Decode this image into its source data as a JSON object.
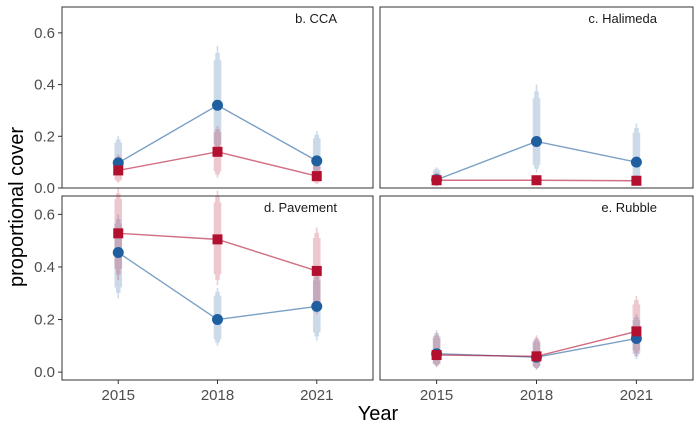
{
  "chart_data": {
    "type": "line",
    "xlabel": "Year",
    "ylabel": "proportional cover",
    "x": [
      2015,
      2018,
      2021
    ],
    "grid": false,
    "colors": {
      "blue": "#1f5fa0",
      "red": "#b30f2e"
    },
    "panels": [
      {
        "title": "b. CCA",
        "ylim": [
          0,
          0.7
        ],
        "yticks": [
          0.0,
          0.2,
          0.4,
          0.6
        ],
        "ytick_labels": [
          "0.0",
          "0.2",
          "0.4",
          "0.6"
        ],
        "series": [
          {
            "color": "#1f5fa0",
            "marker": "circle",
            "values": [
              0.097,
              0.32,
              0.105
            ],
            "ranges": [
              [
                0.05,
                0.2
              ],
              [
                0.12,
                0.55
              ],
              [
                0.03,
                0.22
              ]
            ]
          },
          {
            "color": "#b30f2e",
            "marker": "square",
            "values": [
              0.068,
              0.14,
              0.046
            ],
            "ranges": [
              [
                0.02,
                0.13
              ],
              [
                0.04,
                0.24
              ],
              [
                0.015,
                0.1
              ]
            ]
          }
        ]
      },
      {
        "title": "c. Halimeda",
        "ylim": [
          0,
          0.7
        ],
        "yticks": [
          0.0,
          0.2,
          0.4,
          0.6
        ],
        "ytick_labels": [
          "0.0",
          "0.2",
          "0.4",
          "0.6"
        ],
        "series": [
          {
            "color": "#1f5fa0",
            "marker": "circle",
            "values": [
              0.032,
              0.18,
              0.1
            ],
            "ranges": [
              [
                0.005,
                0.08
              ],
              [
                0.06,
                0.4
              ],
              [
                0.02,
                0.25
              ]
            ]
          },
          {
            "color": "#b30f2e",
            "marker": "square",
            "values": [
              0.03,
              0.03,
              0.028
            ],
            "ranges": [
              [
                0.01,
                0.06
              ],
              [
                0.01,
                0.05
              ],
              [
                0.01,
                0.05
              ]
            ]
          }
        ]
      },
      {
        "title": "d. Pavement",
        "ylim": [
          -0.03,
          0.67
        ],
        "yticks": [
          0.0,
          0.2,
          0.4,
          0.6
        ],
        "ytick_labels": [
          "0.0",
          "0.2",
          "0.4",
          "0.6"
        ],
        "series": [
          {
            "color": "#1f5fa0",
            "marker": "circle",
            "values": [
              0.455,
              0.2,
              0.25
            ],
            "ranges": [
              [
                0.28,
                0.6
              ],
              [
                0.1,
                0.32
              ],
              [
                0.12,
                0.38
              ]
            ]
          },
          {
            "color": "#b30f2e",
            "marker": "square",
            "values": [
              0.528,
              0.505,
              0.385
            ],
            "ranges": [
              [
                0.35,
                0.7
              ],
              [
                0.33,
                0.69
              ],
              [
                0.22,
                0.55
              ]
            ]
          }
        ]
      },
      {
        "title": "e. Rubble",
        "ylim": [
          -0.03,
          0.67
        ],
        "yticks": [
          0.0,
          0.2,
          0.4,
          0.6
        ],
        "ytick_labels": [
          "0.0",
          "0.2",
          "0.4",
          "0.6"
        ],
        "series": [
          {
            "color": "#1f5fa0",
            "marker": "circle",
            "values": [
              0.07,
              0.057,
              0.128
            ],
            "ranges": [
              [
                0.02,
                0.16
              ],
              [
                0.01,
                0.13
              ],
              [
                0.05,
                0.22
              ]
            ]
          },
          {
            "color": "#b30f2e",
            "marker": "square",
            "values": [
              0.065,
              0.06,
              0.155
            ],
            "ranges": [
              [
                0.02,
                0.15
              ],
              [
                0.01,
                0.14
              ],
              [
                0.06,
                0.29
              ]
            ]
          }
        ]
      }
    ]
  }
}
